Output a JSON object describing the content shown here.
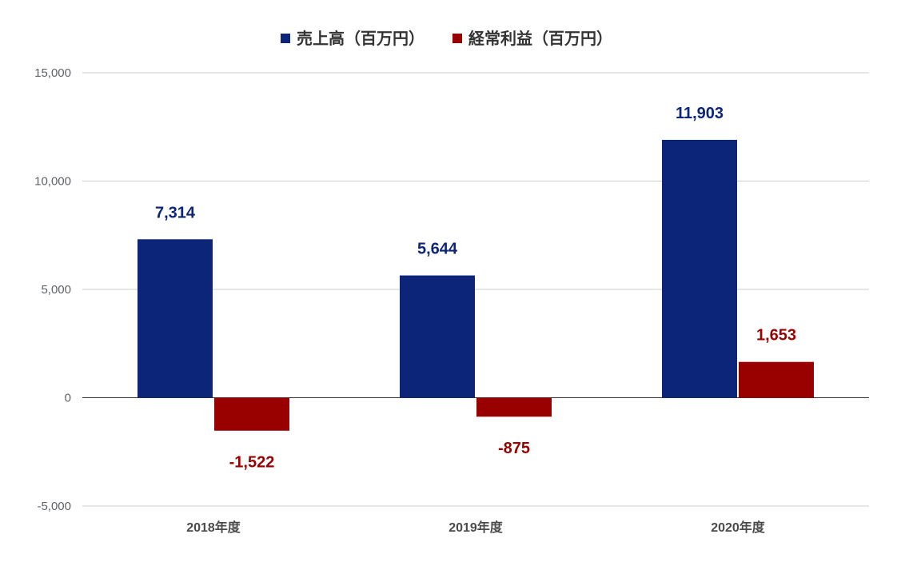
{
  "chart_data": {
    "type": "bar",
    "categories": [
      "2018年度",
      "2019年度",
      "2020年度"
    ],
    "series": [
      {
        "name": "売上高（百万円）",
        "values": [
          7314,
          5644,
          11903
        ],
        "labels": [
          "7,314",
          "5,644",
          "11,903"
        ],
        "color": "#0d2578"
      },
      {
        "name": "経常利益（百万円）",
        "values": [
          -1522,
          -875,
          1653
        ],
        "labels": [
          "-1,522",
          "-875",
          "1,653"
        ],
        "color": "#990000"
      }
    ],
    "yticks": [
      "15,000",
      "10,000",
      "5,000",
      "0",
      "-5,000"
    ],
    "ytick_values": [
      15000,
      10000,
      5000,
      0,
      -5000
    ],
    "ylim": [
      -5000,
      15000
    ],
    "grid": true,
    "legend_position": "top-center"
  }
}
